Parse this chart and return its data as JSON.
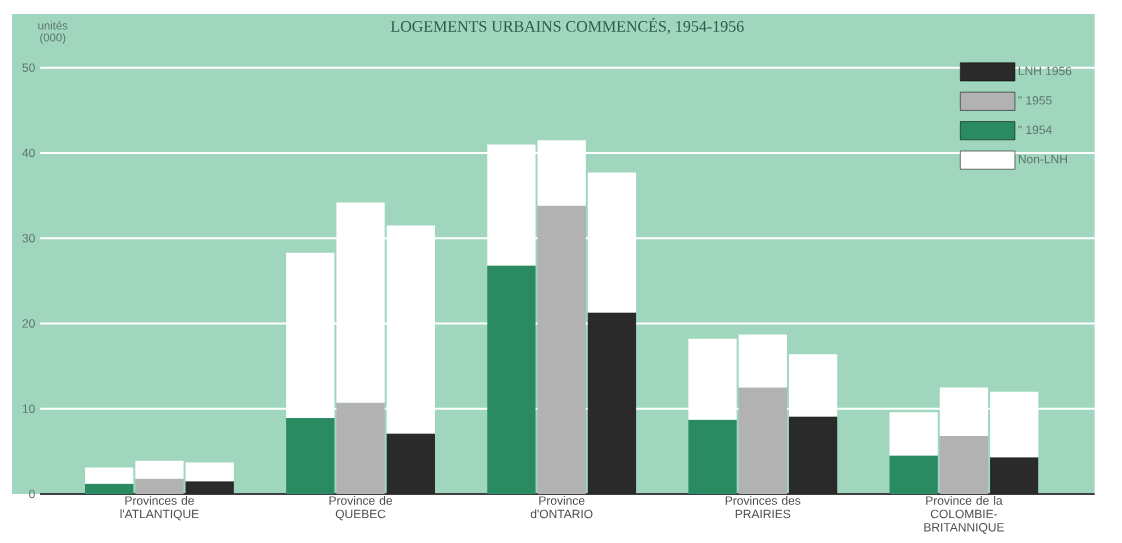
{
  "chart_data": {
    "type": "bar",
    "title": "LOGEMENTS URBAINS COMMENCÉS, 1954-1956",
    "ylabel": "unités (000)",
    "categories": [
      null,
      "Provinces de l'ATLANTIQUE",
      null,
      null,
      null,
      "Province de QUEBEC",
      null,
      null,
      null,
      "Province d'ONTARIO",
      null,
      null,
      null,
      "Provinces des PRAIRIES",
      null,
      null,
      null,
      "Province de la COLOMBIE-BRITANNIQUE",
      null
    ],
    "series": [
      {
        "name": "LNH 1956",
        "color": "#2a2a2a",
        "values": [
          null,
          null,
          1.5,
          null,
          null,
          null,
          7.1,
          null,
          null,
          null,
          21.3,
          null,
          null,
          null,
          9.1,
          null,
          null,
          null,
          4.3
        ]
      },
      {
        "name": "\" 1955",
        "color": "#b2b2b2",
        "values": [
          null,
          1.8,
          null,
          null,
          null,
          10.7,
          null,
          null,
          null,
          33.8,
          null,
          null,
          null,
          12.5,
          null,
          null,
          null,
          6.8,
          null
        ]
      },
      {
        "name": "\" 1954",
        "color": "#2a8a62",
        "values": [
          1.2,
          null,
          null,
          null,
          8.9,
          null,
          null,
          null,
          26.8,
          null,
          null,
          null,
          8.7,
          null,
          null,
          null,
          4.5,
          null,
          null
        ]
      },
      {
        "name": "Non-LNH",
        "color": "#ffffff",
        "values": [
          1.9,
          2.1,
          2.2,
          null,
          19.4,
          23.5,
          24.4,
          null,
          14.2,
          7.7,
          16.4,
          null,
          9.5,
          6.2,
          7.3,
          null,
          5.1,
          5.7,
          7.7
        ]
      }
    ],
    "stacked": true,
    "ylim": [
      0,
      56.3
    ],
    "yticks": [
      0,
      10,
      20,
      30,
      40,
      50
    ],
    "grid": "y",
    "legend": "top right"
  }
}
